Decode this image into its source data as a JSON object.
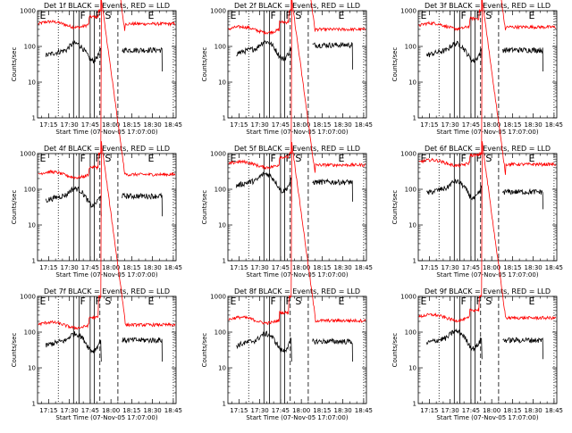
{
  "shared": {
    "xlabel": "Start Time (07-Nov-05 17:07:00)",
    "ylabel": "Counts/sec",
    "x_tick_labels": [
      "17:15",
      "17:30",
      "17:45",
      "18:00",
      "18:15",
      "18:30",
      "18:45"
    ],
    "y_tick_labels": [
      "1",
      "10",
      "100",
      "1000"
    ],
    "yscale": "log",
    "ylim": [
      1,
      1000
    ],
    "xlim": [
      "17:07",
      "18:47"
    ],
    "colors": {
      "events": "#000000",
      "lld": "#ff0000"
    },
    "markers": [
      {
        "label": "E",
        "time": "17:08",
        "style": "none"
      },
      {
        "label": "F",
        "time": "17:37",
        "style": "solid"
      },
      {
        "label": "F",
        "time": "17:48",
        "style": "solid"
      },
      {
        "label": "S",
        "time": "17:55",
        "style": "dashed"
      },
      {
        "label": "E",
        "time": "18:26",
        "style": "none"
      }
    ],
    "event_lines": [
      {
        "time": "17:22",
        "style": "dotted"
      },
      {
        "time": "17:33",
        "style": "solid"
      },
      {
        "time": "17:37",
        "style": "solid"
      },
      {
        "time": "17:45",
        "style": "solid"
      },
      {
        "time": "17:48",
        "style": "solid"
      },
      {
        "time": "17:52",
        "style": "dashed"
      },
      {
        "time": "18:05",
        "style": "dashed"
      },
      {
        "time": "18:45",
        "style": "dotted"
      }
    ]
  },
  "chart_data": [
    {
      "type": "line",
      "title": "Det 1f BLACK = Events, RED = LLD",
      "events_level": 80,
      "lld_level": 420,
      "lld_peak": 1000,
      "events_after": 80,
      "lld_after": 430
    },
    {
      "type": "line",
      "title": "Det 2f BLACK = Events, RED = LLD",
      "events_level": 90,
      "lld_level": 300,
      "lld_peak": 1000,
      "events_after": 110,
      "lld_after": 300
    },
    {
      "type": "line",
      "title": "Det 3f BLACK = Events, RED = LLD",
      "events_level": 80,
      "lld_level": 380,
      "lld_peak": 1000,
      "events_after": 80,
      "lld_after": 350
    },
    {
      "type": "line",
      "title": "Det 4f BLACK = Events, RED = LLD",
      "events_level": 70,
      "lld_level": 260,
      "lld_peak": 1000,
      "events_after": 65,
      "lld_after": 260
    },
    {
      "type": "line",
      "title": "Det 5f BLACK = Events, RED = LLD",
      "events_level": 180,
      "lld_level": 500,
      "lld_peak": 1000,
      "events_after": 160,
      "lld_after": 480
    },
    {
      "type": "line",
      "title": "Det 6f BLACK = Events, RED = LLD",
      "events_level": 110,
      "lld_level": 560,
      "lld_peak": 1000,
      "events_after": 85,
      "lld_after": 500
    },
    {
      "type": "line",
      "title": "Det 7f BLACK = Events, RED = LLD",
      "events_level": 60,
      "lld_level": 160,
      "lld_peak": 1000,
      "events_after": 60,
      "lld_after": 160
    },
    {
      "type": "line",
      "title": "Det 8f BLACK = Events, RED = LLD",
      "events_level": 60,
      "lld_level": 220,
      "lld_peak": 1000,
      "events_after": 55,
      "lld_after": 210
    },
    {
      "type": "line",
      "title": "Det 9f BLACK = Events, RED = LLD",
      "events_level": 70,
      "lld_level": 260,
      "lld_peak": 1000,
      "events_after": 60,
      "lld_after": 250
    }
  ]
}
